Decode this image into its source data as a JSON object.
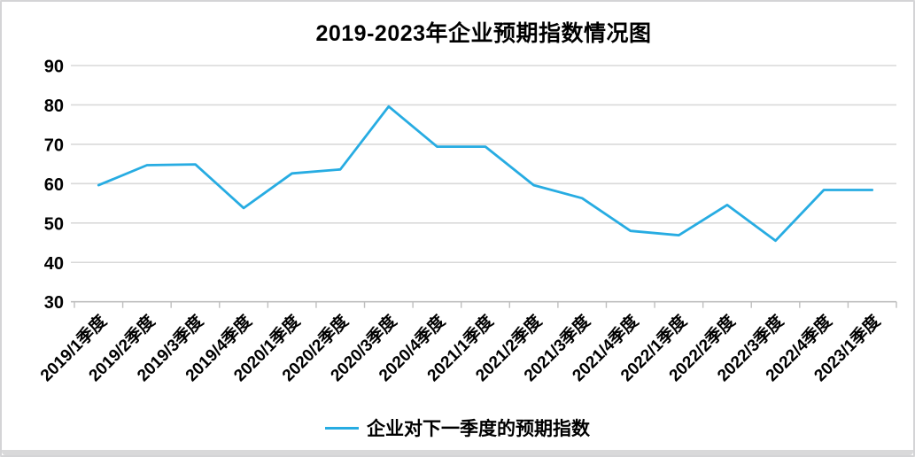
{
  "window": {
    "background": "#ffffff",
    "border_color": "#d4d4d6",
    "bottom_bar_color": "#d9d9da"
  },
  "chart_data": {
    "type": "line",
    "title": "2019-2023年企业预期指数情况图",
    "categories": [
      "2019/1季度",
      "2019/2季度",
      "2019/3季度",
      "2019/4季度",
      "2020/1季度",
      "2020/2季度",
      "2020/3季度",
      "2020/4季度",
      "2021/1季度",
      "2021/2季度",
      "2021/3季度",
      "2021/4季度",
      "2022/1季度",
      "2022/2季度",
      "2022/3季度",
      "2022/4季度",
      "2023/1季度"
    ],
    "series": [
      {
        "name": "企业对下一季度的预期指数",
        "color": "#27ace2",
        "values": [
          59.6,
          64.7,
          64.9,
          53.8,
          62.6,
          63.6,
          79.6,
          69.4,
          69.4,
          59.6,
          56.3,
          48.0,
          46.9,
          54.6,
          45.5,
          58.4,
          58.4
        ]
      }
    ],
    "xlabel": "",
    "ylabel": "",
    "ylim": [
      30,
      90
    ],
    "yticks": [
      30,
      40,
      50,
      60,
      70,
      80,
      90
    ],
    "grid": "horizontal",
    "gridline_color": "#d9d9d9",
    "axis_color": "#bfbfbf",
    "tick_label_color": "#000000",
    "legend_position": "bottom"
  }
}
